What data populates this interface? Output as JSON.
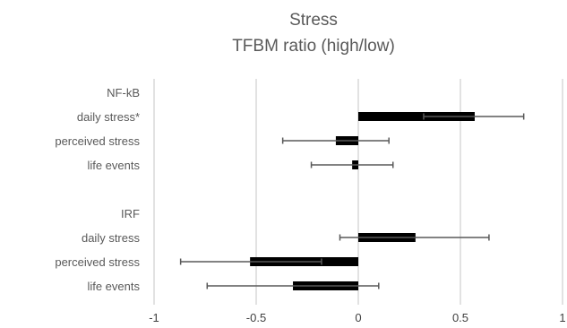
{
  "chart_data": {
    "type": "bar",
    "orientation": "horizontal",
    "title": [
      "Stress",
      "TFBM ratio (high/low)"
    ],
    "xlabel": "",
    "ylabel": "",
    "xlim": [
      -1,
      1
    ],
    "x_ticks": [
      "-1",
      "-0.5",
      "0",
      "0.5",
      "1"
    ],
    "x_tick_values": [
      -1,
      -0.5,
      0,
      0.5,
      1
    ],
    "grid": "vertical",
    "bar_color": "#000000",
    "grid_color": "#d9d9d9",
    "error_bar_color": "#595959",
    "groups": [
      {
        "name": "NF-kB",
        "rows": [
          {
            "label": "daily stress*",
            "value": 0.57,
            "err_low": 0.32,
            "err_high": 0.81
          },
          {
            "label": "perceived stress",
            "value": -0.11,
            "err_low": -0.37,
            "err_high": 0.15
          },
          {
            "label": "life events",
            "value": -0.03,
            "err_low": -0.23,
            "err_high": 0.17
          }
        ]
      },
      {
        "name": "IRF",
        "rows": [
          {
            "label": "daily stress",
            "value": 0.28,
            "err_low": -0.09,
            "err_high": 0.64
          },
          {
            "label": "perceived stress",
            "value": -0.53,
            "err_low": -0.87,
            "err_high": -0.18
          },
          {
            "label": "life events",
            "value": -0.32,
            "err_low": -0.74,
            "err_high": 0.1
          }
        ]
      }
    ]
  }
}
